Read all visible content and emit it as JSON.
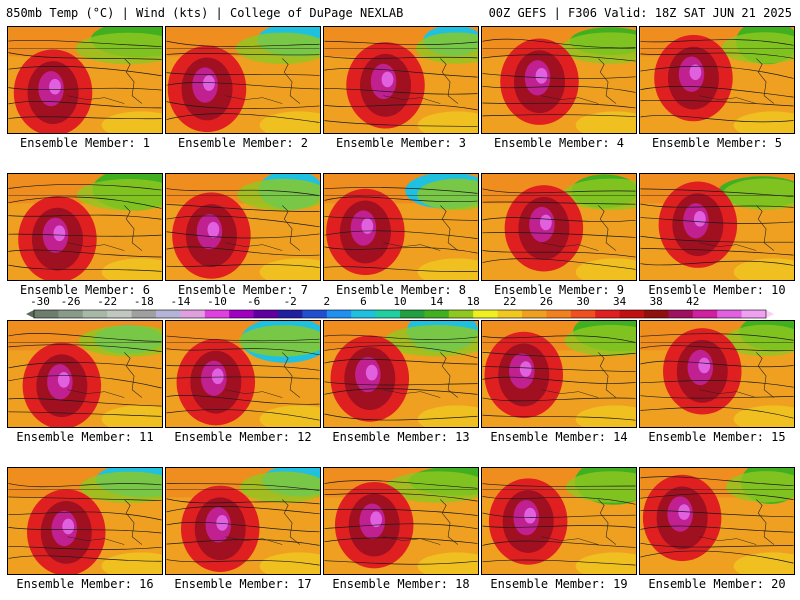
{
  "header": {
    "left": "850mb Temp (°C) | Wind (kts) | College of DuPage NEXLAB",
    "right": "00Z GEFS | F306 Valid: 18Z SAT JUN 21 2025"
  },
  "members": [
    {
      "caption": "Ensemble Member: 1"
    },
    {
      "caption": "Ensemble Member: 2"
    },
    {
      "caption": "Ensemble Member: 3"
    },
    {
      "caption": "Ensemble Member: 4"
    },
    {
      "caption": "Ensemble Member: 5"
    },
    {
      "caption": "Ensemble Member: 6"
    },
    {
      "caption": "Ensemble Member: 7"
    },
    {
      "caption": "Ensemble Member: 8"
    },
    {
      "caption": "Ensemble Member: 9"
    },
    {
      "caption": "Ensemble Member: 10"
    },
    {
      "caption": "Ensemble Member: 11"
    },
    {
      "caption": "Ensemble Member: 12"
    },
    {
      "caption": "Ensemble Member: 13"
    },
    {
      "caption": "Ensemble Member: 14"
    },
    {
      "caption": "Ensemble Member: 15"
    },
    {
      "caption": "Ensemble Member: 16"
    },
    {
      "caption": "Ensemble Member: 17"
    },
    {
      "caption": "Ensemble Member: 18"
    },
    {
      "caption": "Ensemble Member: 19"
    },
    {
      "caption": "Ensemble Member: 20"
    }
  ],
  "colorbar": {
    "labels": [
      "-30",
      "-26",
      "-22",
      "-18",
      "-14",
      "-10",
      "-6",
      "-2",
      "2",
      "6",
      "10",
      "14",
      "18",
      "22",
      "26",
      "30",
      "34",
      "38",
      "42"
    ],
    "colors": [
      "#6e7e6e",
      "#8a9a8a",
      "#a8b8a8",
      "#c0c8c0",
      "#a0a0a0",
      "#b4b4d8",
      "#e0a0e0",
      "#e040e0",
      "#a000c0",
      "#6000a0",
      "#2020a0",
      "#2050d0",
      "#2090f0",
      "#20c0e0",
      "#20d0a0",
      "#20a040",
      "#40b020",
      "#90c820",
      "#f0f020",
      "#f0c820",
      "#f0a020",
      "#f08020",
      "#f05020",
      "#e02020",
      "#c01010",
      "#901010",
      "#a01060",
      "#d020a0",
      "#e060e0",
      "#f0a0f0"
    ]
  }
}
